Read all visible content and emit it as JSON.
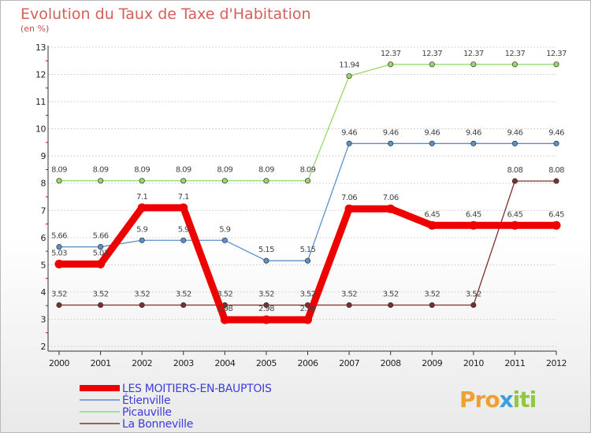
{
  "chart_data": {
    "type": "line",
    "title": "Evolution du Taux de Taxe d'Habitation",
    "subtitle": "(en %)",
    "x": [
      "2000",
      "2001",
      "2002",
      "2003",
      "2004",
      "2005",
      "2006",
      "2007",
      "2008",
      "2009",
      "2010",
      "2011",
      "2012"
    ],
    "ylim": [
      2,
      13
    ],
    "yticks": [
      "2",
      "3",
      "4",
      "5",
      "6",
      "7",
      "8",
      "9",
      "10",
      "11",
      "12",
      "13"
    ],
    "grid": "horizontal",
    "legend_position": "bottom-left",
    "series": [
      {
        "name": "LES MOITIERS-EN-BAUPTOIS",
        "color": "#ee0000",
        "values": [
          5.03,
          5.03,
          7.1,
          7.1,
          2.98,
          2.98,
          2.98,
          7.06,
          7.06,
          6.45,
          6.45,
          6.45,
          6.45
        ],
        "labels": [
          "5.03",
          "5.03",
          "7.1",
          "7.1",
          "2.98",
          "2.98",
          "2.98",
          "7.06",
          "7.06",
          "6.45",
          "6.45",
          "6.45",
          "6.45"
        ]
      },
      {
        "name": "Étienville",
        "color": "#5b8fc9",
        "values": [
          5.66,
          5.66,
          5.9,
          5.9,
          5.9,
          5.15,
          5.15,
          9.46,
          9.46,
          9.46,
          9.46,
          9.46,
          9.46
        ],
        "labels": [
          "5.66",
          "5.66",
          "5.9",
          "5.9",
          "5.9",
          "5.15",
          "5.15",
          "9.46",
          "9.46",
          "9.46",
          "9.46",
          "9.46",
          "9.46"
        ]
      },
      {
        "name": "Picauville",
        "color": "#96d86a",
        "values": [
          8.09,
          8.09,
          8.09,
          8.09,
          8.09,
          8.09,
          8.09,
          11.94,
          12.37,
          12.37,
          12.37,
          12.37,
          12.37
        ],
        "labels": [
          "8.09",
          "8.09",
          "8.09",
          "8.09",
          "8.09",
          "8.09",
          "8.09",
          "11.94",
          "12.37",
          "12.37",
          "12.37",
          "12.37",
          "12.37"
        ]
      },
      {
        "name": "La Bonneville",
        "color": "#7a2f2f",
        "values": [
          3.52,
          3.52,
          3.52,
          3.52,
          3.52,
          3.52,
          3.52,
          3.52,
          3.52,
          3.52,
          3.52,
          8.08,
          8.08
        ],
        "labels": [
          "3.52",
          "3.52",
          "3.52",
          "3.52",
          "3.52",
          "3.52",
          "3.52",
          "3.52",
          "3.52",
          "3.52",
          "3.52",
          "8.08",
          "8.08"
        ]
      }
    ]
  },
  "logo": {
    "p1": "Pro",
    "x": "x",
    "p2": "iti"
  }
}
